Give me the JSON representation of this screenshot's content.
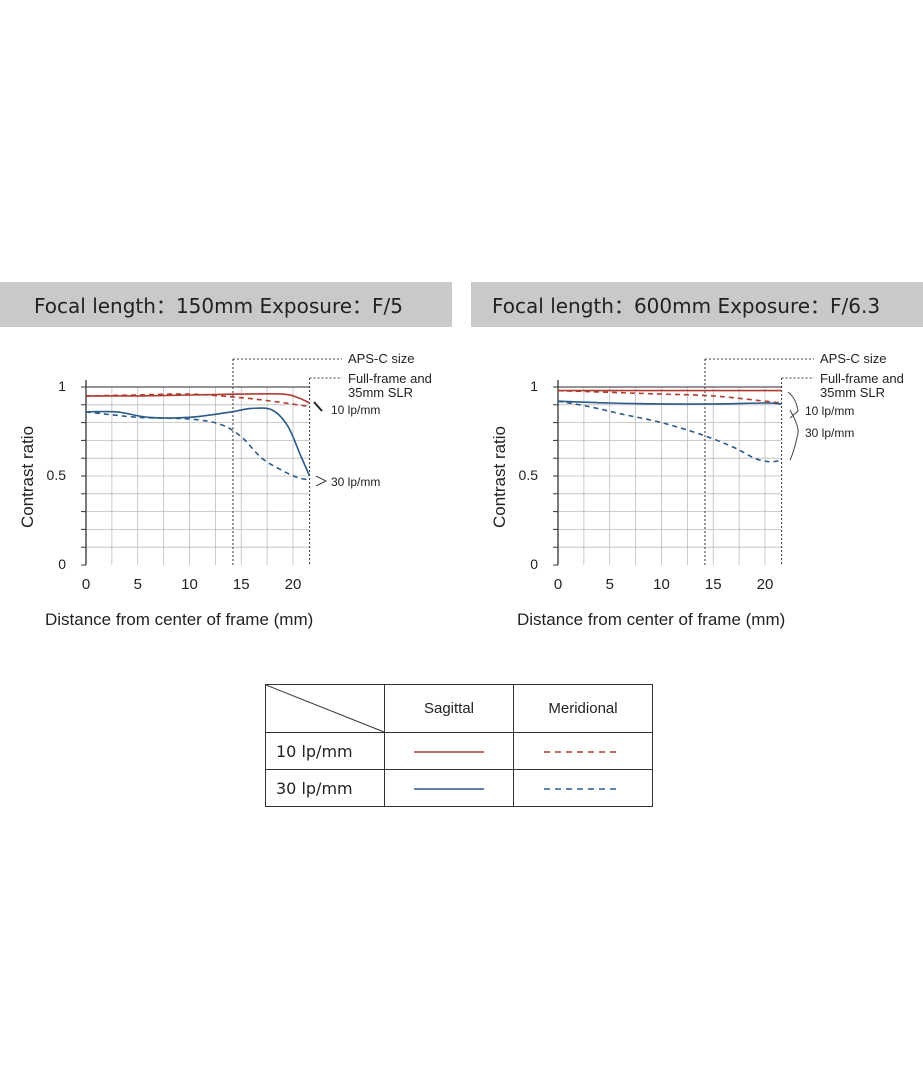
{
  "panels": [
    {
      "title": "Focal length：150mm  Exposure：F/5"
    },
    {
      "title": "Focal length：600mm  Exposure：F/6.3"
    }
  ],
  "legend": {
    "col_headers": [
      "Sagittal",
      "Meridional"
    ],
    "rows": [
      "10 lp/mm",
      "30 lp/mm"
    ]
  },
  "colors": {
    "lp10": "#b03a2e",
    "lp30": "#2b5a8a",
    "grid": "#bbbbbb",
    "banner": "#c9c9c9"
  },
  "chart_data": [
    {
      "type": "line",
      "title": "Focal length：150mm  Exposure：F/5",
      "xlabel": "Distance from center of frame (mm)",
      "ylabel": "Contrast ratio",
      "xlim": [
        0,
        21.6
      ],
      "ylim": [
        0,
        1
      ],
      "xticks": [
        "0",
        "5",
        "10",
        "15",
        "20"
      ],
      "yticks": [
        "0",
        "0.5",
        "1"
      ],
      "grid": true,
      "annotations": {
        "aps_c": "APS-C size",
        "full_frame": "Full-frame and\n35mm SLR",
        "lp10": "10 lp/mm",
        "lp30": "30 lp/mm"
      },
      "aps_c_boundary": 14.2,
      "full_frame_boundary": 21.6,
      "series": [
        {
          "name": "10 lp/mm Sagittal",
          "freq": "10",
          "style": "solid",
          "x": [
            0,
            5,
            10,
            15,
            19,
            20.5,
            21.6
          ],
          "y": [
            0.95,
            0.95,
            0.955,
            0.96,
            0.96,
            0.94,
            0.91
          ]
        },
        {
          "name": "10 lp/mm Meridional",
          "freq": "10",
          "style": "dashed",
          "x": [
            0,
            5,
            10,
            15,
            18,
            21.6
          ],
          "y": [
            0.95,
            0.955,
            0.96,
            0.94,
            0.92,
            0.89
          ]
        },
        {
          "name": "30 lp/mm Sagittal",
          "freq": "30",
          "style": "solid",
          "x": [
            0,
            3,
            6,
            10,
            14,
            16,
            18,
            19.5,
            20.7,
            21.6
          ],
          "y": [
            0.86,
            0.86,
            0.83,
            0.83,
            0.86,
            0.88,
            0.87,
            0.78,
            0.62,
            0.5
          ]
        },
        {
          "name": "30 lp/mm Meridional",
          "freq": "30",
          "style": "dashed",
          "x": [
            0,
            5,
            10,
            13,
            15,
            17,
            19,
            20.5,
            21.6
          ],
          "y": [
            0.86,
            0.83,
            0.82,
            0.79,
            0.72,
            0.6,
            0.53,
            0.49,
            0.48
          ]
        }
      ]
    },
    {
      "type": "line",
      "title": "Focal length：600mm  Exposure：F/6.3",
      "xlabel": "Distance from center of frame (mm)",
      "ylabel": "Contrast ratio",
      "xlim": [
        0,
        21.6
      ],
      "ylim": [
        0,
        1
      ],
      "xticks": [
        "0",
        "5",
        "10",
        "15",
        "20"
      ],
      "yticks": [
        "0",
        "0.5",
        "1"
      ],
      "grid": true,
      "annotations": {
        "aps_c": "APS-C size",
        "full_frame": "Full-frame and\n35mm SLR",
        "lp10": "10 lp/mm",
        "lp30": "30 lp/mm"
      },
      "aps_c_boundary": 14.2,
      "full_frame_boundary": 21.6,
      "series": [
        {
          "name": "10 lp/mm Sagittal",
          "freq": "10",
          "style": "solid",
          "x": [
            0,
            5,
            10,
            15,
            20,
            21.6
          ],
          "y": [
            0.98,
            0.98,
            0.98,
            0.98,
            0.98,
            0.98
          ]
        },
        {
          "name": "10 lp/mm Meridional",
          "freq": "10",
          "style": "dashed",
          "x": [
            0,
            5,
            10,
            15,
            20,
            21.6
          ],
          "y": [
            0.98,
            0.97,
            0.96,
            0.95,
            0.92,
            0.91
          ]
        },
        {
          "name": "30 lp/mm Sagittal",
          "freq": "30",
          "style": "solid",
          "x": [
            0,
            5,
            10,
            15,
            20,
            21.6
          ],
          "y": [
            0.92,
            0.91,
            0.905,
            0.905,
            0.91,
            0.905
          ]
        },
        {
          "name": "30 lp/mm Meridional",
          "freq": "30",
          "style": "dashed",
          "x": [
            0,
            3,
            6,
            10,
            14,
            17,
            19,
            20.5,
            21.6
          ],
          "y": [
            0.92,
            0.89,
            0.85,
            0.8,
            0.73,
            0.66,
            0.6,
            0.58,
            0.59
          ]
        }
      ]
    }
  ]
}
